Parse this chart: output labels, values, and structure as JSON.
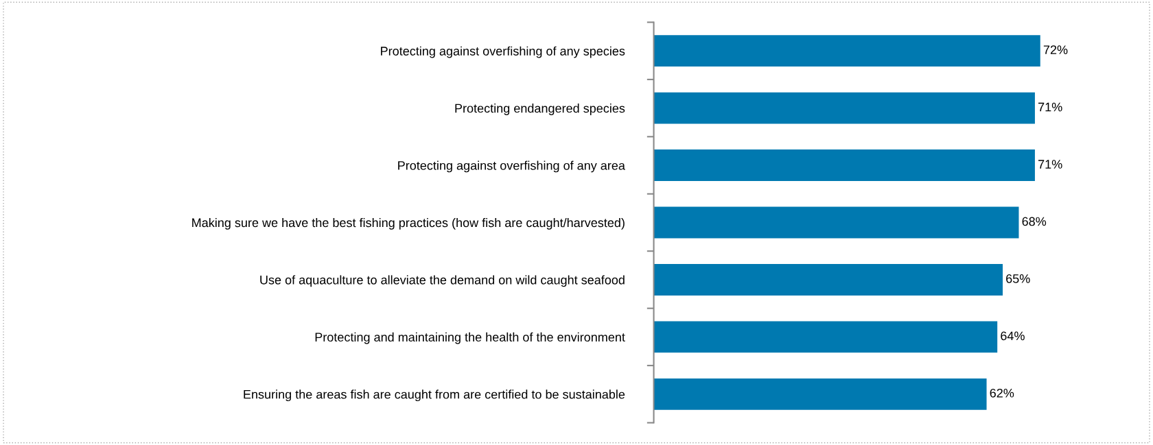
{
  "chart_data": {
    "type": "bar",
    "orientation": "horizontal",
    "categories": [
      "Protecting against overfishing of any species",
      "Protecting endangered species",
      "Protecting against overfishing of any area",
      "Making sure we have the best fishing practices (how fish are caught/harvested)",
      "Use of aquaculture to alleviate the demand on wild caught seafood",
      "Protecting and maintaining the health of the environment",
      "Ensuring the areas fish are caught from are certified to be sustainable"
    ],
    "values": [
      72,
      71,
      71,
      68,
      65,
      64,
      62
    ],
    "value_labels": [
      "72%",
      "71%",
      "71%",
      "68%",
      "65%",
      "64%",
      "62%"
    ],
    "color": "#0079b0",
    "tick_labels": "y",
    "grid": false,
    "legend": false
  }
}
